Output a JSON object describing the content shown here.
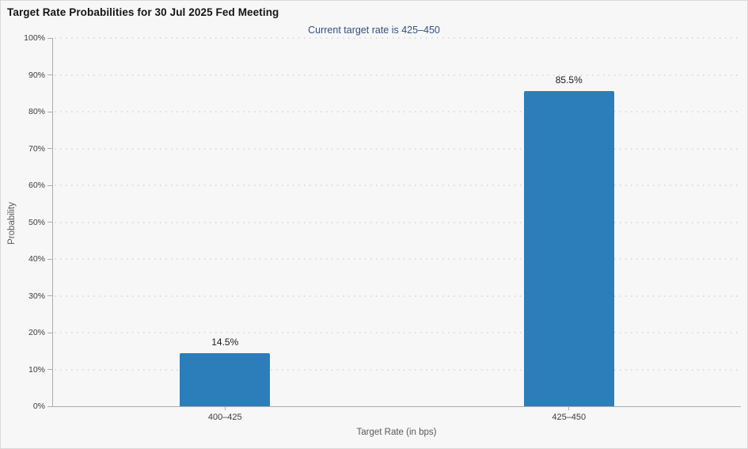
{
  "header": {
    "title": "Target Rate Probabilities for 30 Jul 2025 Fed Meeting",
    "subtitle": "Current target rate is 425–450"
  },
  "chart_data": {
    "type": "bar",
    "title": "Target Rate Probabilities for 30 Jul 2025 Fed Meeting",
    "subtitle": "Current target rate is 425–450",
    "categories": [
      "400–425",
      "425–450"
    ],
    "values": [
      14.5,
      85.5
    ],
    "value_labels": [
      "14.5%",
      "85.5%"
    ],
    "xlabel": "Target Rate (in bps)",
    "ylabel": "Probability",
    "ylim": [
      0,
      100
    ],
    "y_tick_step": 10,
    "y_tick_labels": [
      "0%",
      "10%",
      "20%",
      "30%",
      "40%",
      "50%",
      "60%",
      "70%",
      "80%",
      "90%",
      "100%"
    ],
    "grid": "horizontal-dotted",
    "legend_position": "none"
  },
  "colors": {
    "bar": "#2b7eb9",
    "subtitle_text": "#34507e",
    "axis_line": "#ababab",
    "grid_dot": "#dcdcdc",
    "background": "#f7f7f8",
    "frame_border": "#d9d9d9"
  }
}
